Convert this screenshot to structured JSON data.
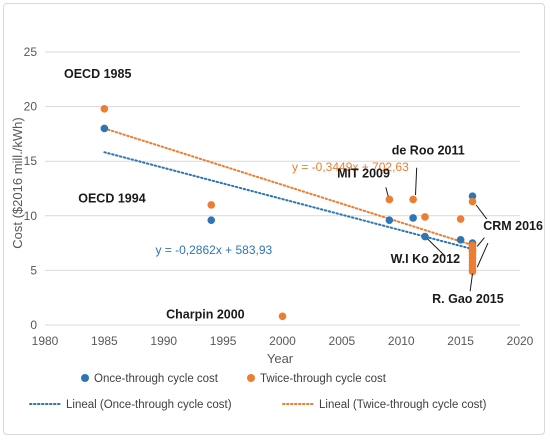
{
  "chart_data": {
    "type": "scatter",
    "xlabel": "Year",
    "ylabel": "Cost ($2016 mill./kWh)",
    "xlim": [
      1980,
      2020
    ],
    "ylim": [
      0,
      25
    ],
    "xticks": [
      1980,
      1985,
      1990,
      1995,
      2000,
      2005,
      2010,
      2015,
      2020
    ],
    "yticks": [
      0,
      5,
      10,
      15,
      20,
      25
    ],
    "grid": "horizontal",
    "legend_position": "bottom",
    "series": [
      {
        "name": "Once-through cycle cost",
        "color": "#2e75b6",
        "points": [
          [
            1985,
            18.0
          ],
          [
            1994,
            9.6
          ],
          [
            2009,
            9.6
          ],
          [
            2011,
            9.8
          ],
          [
            2012,
            8.1
          ],
          [
            2015,
            7.8
          ],
          [
            2016,
            11.8
          ],
          [
            2016,
            7.5
          ],
          [
            2016,
            7.2
          ],
          [
            2016,
            6.9
          ]
        ]
      },
      {
        "name": "Twice-through cycle cost",
        "color": "#ed7d31",
        "points": [
          [
            1985,
            19.8
          ],
          [
            1994,
            11.0
          ],
          [
            2000,
            0.8
          ],
          [
            2009,
            11.5
          ],
          [
            2011,
            11.5
          ],
          [
            2012,
            9.9
          ],
          [
            2015,
            9.7
          ],
          [
            2016,
            11.3
          ],
          [
            2016,
            7.3
          ],
          [
            2016,
            7.0
          ],
          [
            2016,
            6.7
          ],
          [
            2016,
            6.4
          ],
          [
            2016,
            6.1
          ],
          [
            2016,
            5.8
          ],
          [
            2016,
            5.5
          ],
          [
            2016,
            5.2
          ],
          [
            2016,
            4.9
          ]
        ]
      }
    ],
    "trendlines": [
      {
        "name": "Lineal (Once-through cycle cost)",
        "color": "#2e75b6",
        "slope": -0.2862,
        "intercept": 583.93,
        "x_range": [
          1985,
          2016
        ],
        "equation": "y = -0,2862x + 583,93"
      },
      {
        "name": "Lineal (Twice-through cycle cost)",
        "color": "#ed7d31",
        "slope": -0.3449,
        "intercept": 702.63,
        "x_range": [
          1985,
          2016
        ],
        "equation": "y = -0,3449x + 702,63"
      }
    ],
    "annotations": [
      {
        "text": "OECD 1985"
      },
      {
        "text": "OECD 1994"
      },
      {
        "text": "Charpin 2000"
      },
      {
        "text": "MIT 2009"
      },
      {
        "text": "de Roo 2011"
      },
      {
        "text": "W.I Ko 2012"
      },
      {
        "text": "CRM 2016"
      },
      {
        "text": "R. Gao 2015"
      }
    ]
  }
}
